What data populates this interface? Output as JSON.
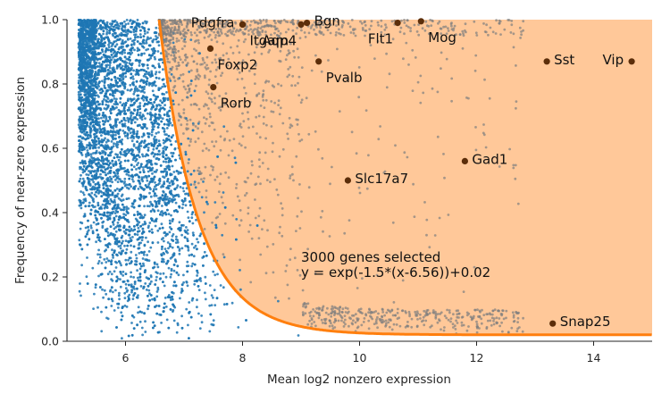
{
  "chart_data": {
    "type": "scatter",
    "xlabel": "Mean log2 nonzero expression",
    "ylabel": "Frequency of near-zero expression",
    "xlim": [
      5,
      15
    ],
    "ylim": [
      0,
      1
    ],
    "xticks": [
      "6",
      "8",
      "10",
      "12",
      "14"
    ],
    "yticks": [
      "0.0",
      "0.2",
      "0.4",
      "0.6",
      "0.8",
      "1.0"
    ],
    "grid": false,
    "colors": {
      "all_genes": "#1f77b4",
      "selected_genes": "#7f7f7f",
      "selection_region": "#ffc899",
      "threshold_curve": "#ff7f0e",
      "marker_genes": "#5c2e0a"
    },
    "threshold": {
      "formula": "y = exp(-1.5*(x-6.56))+0.02",
      "a": 1.5,
      "b": 6.56,
      "offset": 0.02
    },
    "annotation": {
      "line1": "3000 genes selected",
      "line2": "y = exp(-1.5*(x-6.56))+0.02"
    },
    "marker_genes": [
      {
        "name": "Pdgfra",
        "x": 8.0,
        "y": 0.985,
        "label_side": "left"
      },
      {
        "name": "Itgam",
        "x": 8.0,
        "y": 0.985,
        "label_side": "below-right"
      },
      {
        "name": "Bgn",
        "x": 9.1,
        "y": 0.99,
        "label_side": "right"
      },
      {
        "name": "Aqp4",
        "x": 9.0,
        "y": 0.985,
        "label_side": "below-left"
      },
      {
        "name": "Flt1",
        "x": 10.65,
        "y": 0.99,
        "label_side": "below-left"
      },
      {
        "name": "Mog",
        "x": 11.05,
        "y": 0.995,
        "label_side": "below-right"
      },
      {
        "name": "Foxp2",
        "x": 7.45,
        "y": 0.91,
        "label_side": "below-right"
      },
      {
        "name": "Pvalb",
        "x": 9.3,
        "y": 0.87,
        "label_side": "below-right"
      },
      {
        "name": "Rorb",
        "x": 7.5,
        "y": 0.79,
        "label_side": "below-right"
      },
      {
        "name": "Sst",
        "x": 13.2,
        "y": 0.87,
        "label_side": "right"
      },
      {
        "name": "Vip",
        "x": 14.65,
        "y": 0.87,
        "label_side": "left"
      },
      {
        "name": "Gad1",
        "x": 11.8,
        "y": 0.56,
        "label_side": "right"
      },
      {
        "name": "Slc17a7",
        "x": 9.8,
        "y": 0.5,
        "label_side": "right"
      },
      {
        "name": "Snap25",
        "x": 13.3,
        "y": 0.055,
        "label_side": "right"
      }
    ]
  }
}
